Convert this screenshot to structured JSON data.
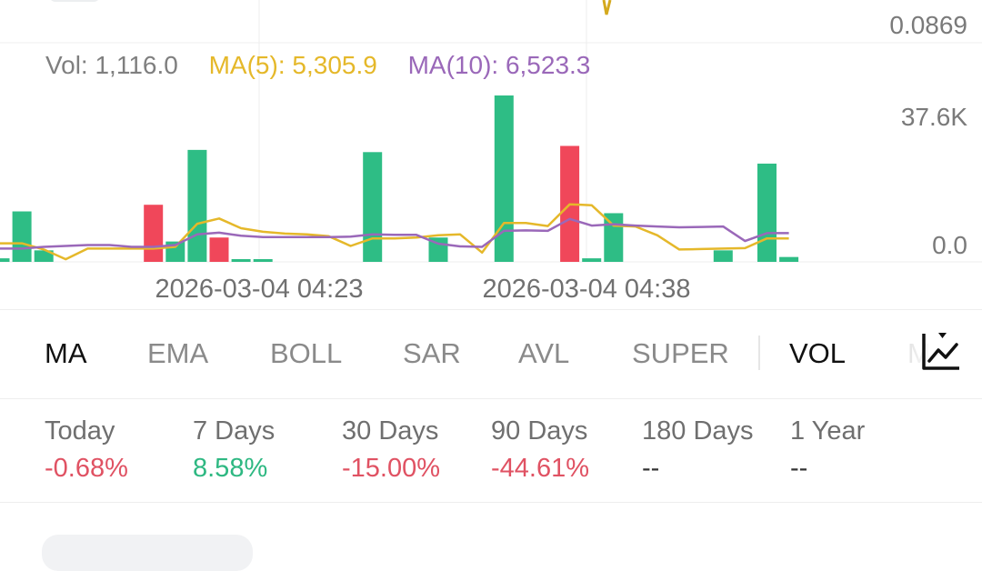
{
  "price_axis": {
    "top_label": "0.0869"
  },
  "volume": {
    "legend": {
      "vol": "Vol: 1,116.0",
      "ma5": "MA(5): 5,305.9",
      "ma10": "MA(10): 6,523.3"
    },
    "y_tick_labels": [
      "37.6K",
      "0.0"
    ],
    "x_tick_labels": [
      "2026-03-04 04:23",
      "2026-03-04 04:38"
    ]
  },
  "chart_data": {
    "type": "bar",
    "y_range": [
      0,
      37600
    ],
    "x_ticks": [
      "2026-03-04 04:23",
      "2026-03-04 04:38"
    ],
    "series": [
      {
        "name": "Vol",
        "values": [
          800,
          11400,
          2600,
          0,
          0,
          0,
          0,
          12900,
          4600,
          25300,
          5500,
          600,
          600,
          0,
          0,
          0,
          0,
          24800,
          0,
          0,
          5500,
          0,
          0,
          37600,
          0,
          0,
          26200,
          800,
          11000,
          0,
          0,
          0,
          0,
          2600,
          0,
          22200,
          1100
        ],
        "directions": [
          "up",
          "up",
          "up",
          "none",
          "none",
          "none",
          "none",
          "down",
          "up",
          "up",
          "down",
          "up",
          "up",
          "none",
          "none",
          "none",
          "none",
          "up",
          "none",
          "none",
          "up",
          "none",
          "none",
          "up",
          "none",
          "none",
          "down",
          "up",
          "up",
          "none",
          "none",
          "none",
          "none",
          "up",
          "none",
          "up",
          "up"
        ]
      },
      {
        "name": "MA(5)",
        "values": [
          4200,
          4200,
          2800,
          600,
          3000,
          3000,
          3000,
          3000,
          3400,
          8600,
          9800,
          7600,
          6800,
          6400,
          6200,
          5800,
          3600,
          5300,
          5300,
          5500,
          6000,
          6200,
          2100,
          8800,
          8800,
          8100,
          13000,
          12800,
          8200,
          8000,
          6000,
          2800,
          2900,
          3000,
          3100,
          5300,
          5300
        ]
      },
      {
        "name": "MA(10)",
        "values": [
          3000,
          3000,
          3400,
          3600,
          3800,
          3800,
          3400,
          3400,
          3800,
          6200,
          6600,
          5900,
          5600,
          5600,
          5600,
          5600,
          5700,
          6200,
          6100,
          6100,
          4100,
          3500,
          3400,
          7000,
          7100,
          7000,
          9700,
          8200,
          8500,
          8200,
          8000,
          7800,
          7900,
          8000,
          4700,
          6500,
          6500
        ]
      }
    ]
  },
  "indicator_tabs": [
    {
      "label": "MA",
      "active": true
    },
    {
      "label": "EMA",
      "active": false
    },
    {
      "label": "BOLL",
      "active": false
    },
    {
      "label": "SAR",
      "active": false
    },
    {
      "label": "AVL",
      "active": false
    },
    {
      "label": "SUPER",
      "active": false
    },
    {
      "label": "VOL",
      "active": true
    },
    {
      "label": "M",
      "active": false
    }
  ],
  "chart_settings_icon": "line-chart-settings-icon",
  "performance": [
    {
      "label": "Today",
      "value": "-0.68%",
      "trend": "neg"
    },
    {
      "label": "7 Days",
      "value": "8.58%",
      "trend": "pos"
    },
    {
      "label": "30 Days",
      "value": "-15.00%",
      "trend": "neg"
    },
    {
      "label": "90 Days",
      "value": "-44.61%",
      "trend": "neg"
    },
    {
      "label": "180 Days",
      "value": "--",
      "trend": "na"
    },
    {
      "label": "1 Year",
      "value": "--",
      "trend": "na"
    }
  ],
  "colors": {
    "up": "#2ebd85",
    "down": "#f0475a",
    "ma5": "#e5b82a",
    "ma10": "#9a68b9",
    "price_line": "#d4a91e"
  }
}
